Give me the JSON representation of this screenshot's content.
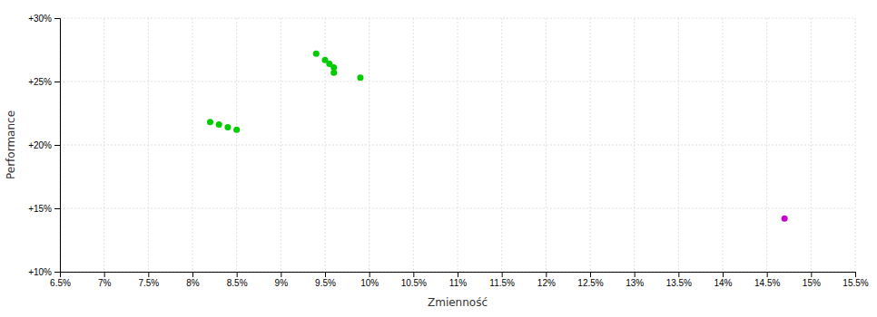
{
  "chart_data": {
    "type": "scatter",
    "xlabel": "Zmienność",
    "ylabel": "Performance",
    "xlim": [
      0.065,
      0.155
    ],
    "ylim": [
      0.1,
      0.3
    ],
    "xticks": [
      {
        "value": 0.065,
        "label": "6.5%"
      },
      {
        "value": 0.07,
        "label": "7%"
      },
      {
        "value": 0.075,
        "label": "7.5%"
      },
      {
        "value": 0.08,
        "label": "8%"
      },
      {
        "value": 0.085,
        "label": "8.5%"
      },
      {
        "value": 0.09,
        "label": "9%"
      },
      {
        "value": 0.095,
        "label": "9.5%"
      },
      {
        "value": 0.1,
        "label": "10%"
      },
      {
        "value": 0.105,
        "label": "10.5%"
      },
      {
        "value": 0.11,
        "label": "11%"
      },
      {
        "value": 0.115,
        "label": "11.5%"
      },
      {
        "value": 0.12,
        "label": "12%"
      },
      {
        "value": 0.125,
        "label": "12.5%"
      },
      {
        "value": 0.13,
        "label": "13%"
      },
      {
        "value": 0.135,
        "label": "13.5%"
      },
      {
        "value": 0.14,
        "label": "14%"
      },
      {
        "value": 0.145,
        "label": "14.5%"
      },
      {
        "value": 0.15,
        "label": "15%"
      },
      {
        "value": 0.155,
        "label": "15.5%"
      }
    ],
    "yticks": [
      {
        "value": 0.1,
        "label": "+10%"
      },
      {
        "value": 0.15,
        "label": "+15%"
      },
      {
        "value": 0.2,
        "label": "+20%"
      },
      {
        "value": 0.25,
        "label": "+25%"
      },
      {
        "value": 0.3,
        "label": "+30%"
      }
    ],
    "grid": true,
    "series": [
      {
        "color": "#00cc00",
        "x": [
          0.094,
          0.095,
          0.0955,
          0.096,
          0.096,
          0.099,
          0.082,
          0.083,
          0.084,
          0.085
        ],
        "values": [
          0.272,
          0.267,
          0.264,
          0.261,
          0.257,
          0.253,
          0.218,
          0.216,
          0.214,
          0.212
        ]
      },
      {
        "color": "#cc00cc",
        "x": [
          0.147
        ],
        "values": [
          0.142
        ]
      }
    ]
  }
}
